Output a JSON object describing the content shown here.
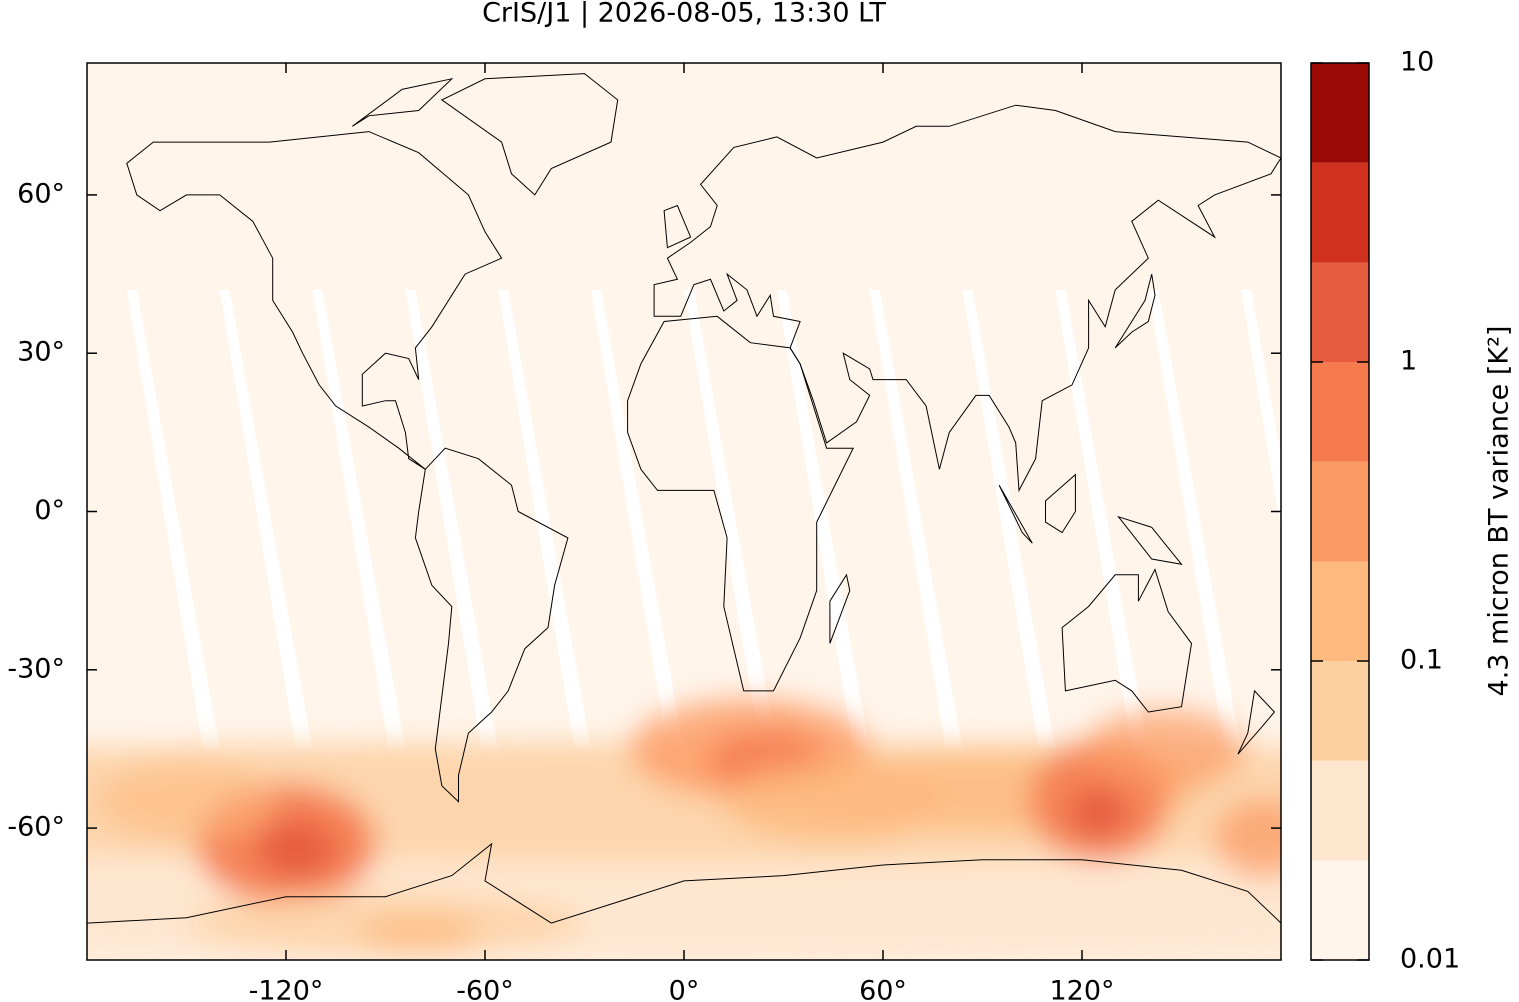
{
  "chart_data": {
    "type": "map",
    "title": "CrIS/J1 | 2026-08-05, 13:30 LT",
    "xlim": [
      -180,
      180
    ],
    "ylim": [
      -85,
      85
    ],
    "xticks": [
      {
        "value": -120,
        "label": "-120°"
      },
      {
        "value": -60,
        "label": "-60°"
      },
      {
        "value": 0,
        "label": "0°"
      },
      {
        "value": 60,
        "label": "60°"
      },
      {
        "value": 120,
        "label": "120°"
      }
    ],
    "yticks": [
      {
        "value": 60,
        "label": "60°"
      },
      {
        "value": 30,
        "label": "30°"
      },
      {
        "value": 0,
        "label": "0°"
      },
      {
        "value": -30,
        "label": "-30°"
      },
      {
        "value": -60,
        "label": "-60°"
      }
    ],
    "colorbar": {
      "label": "4.3 micron BT variance [K²]",
      "log": true,
      "lim": [
        0.01,
        10
      ],
      "ticks": [
        0.01,
        0.1,
        1,
        10
      ],
      "levels": [
        0.01,
        0.0215,
        0.0464,
        0.1,
        0.215,
        0.464,
        1,
        2.15,
        4.64,
        10
      ],
      "colors": [
        "#fff5eb",
        "#fee6ce",
        "#fdd0a2",
        "#fdb97e",
        "#fc9a63",
        "#f57a4e",
        "#e65a3d",
        "#d0321f",
        "#9b0a04"
      ]
    }
  }
}
